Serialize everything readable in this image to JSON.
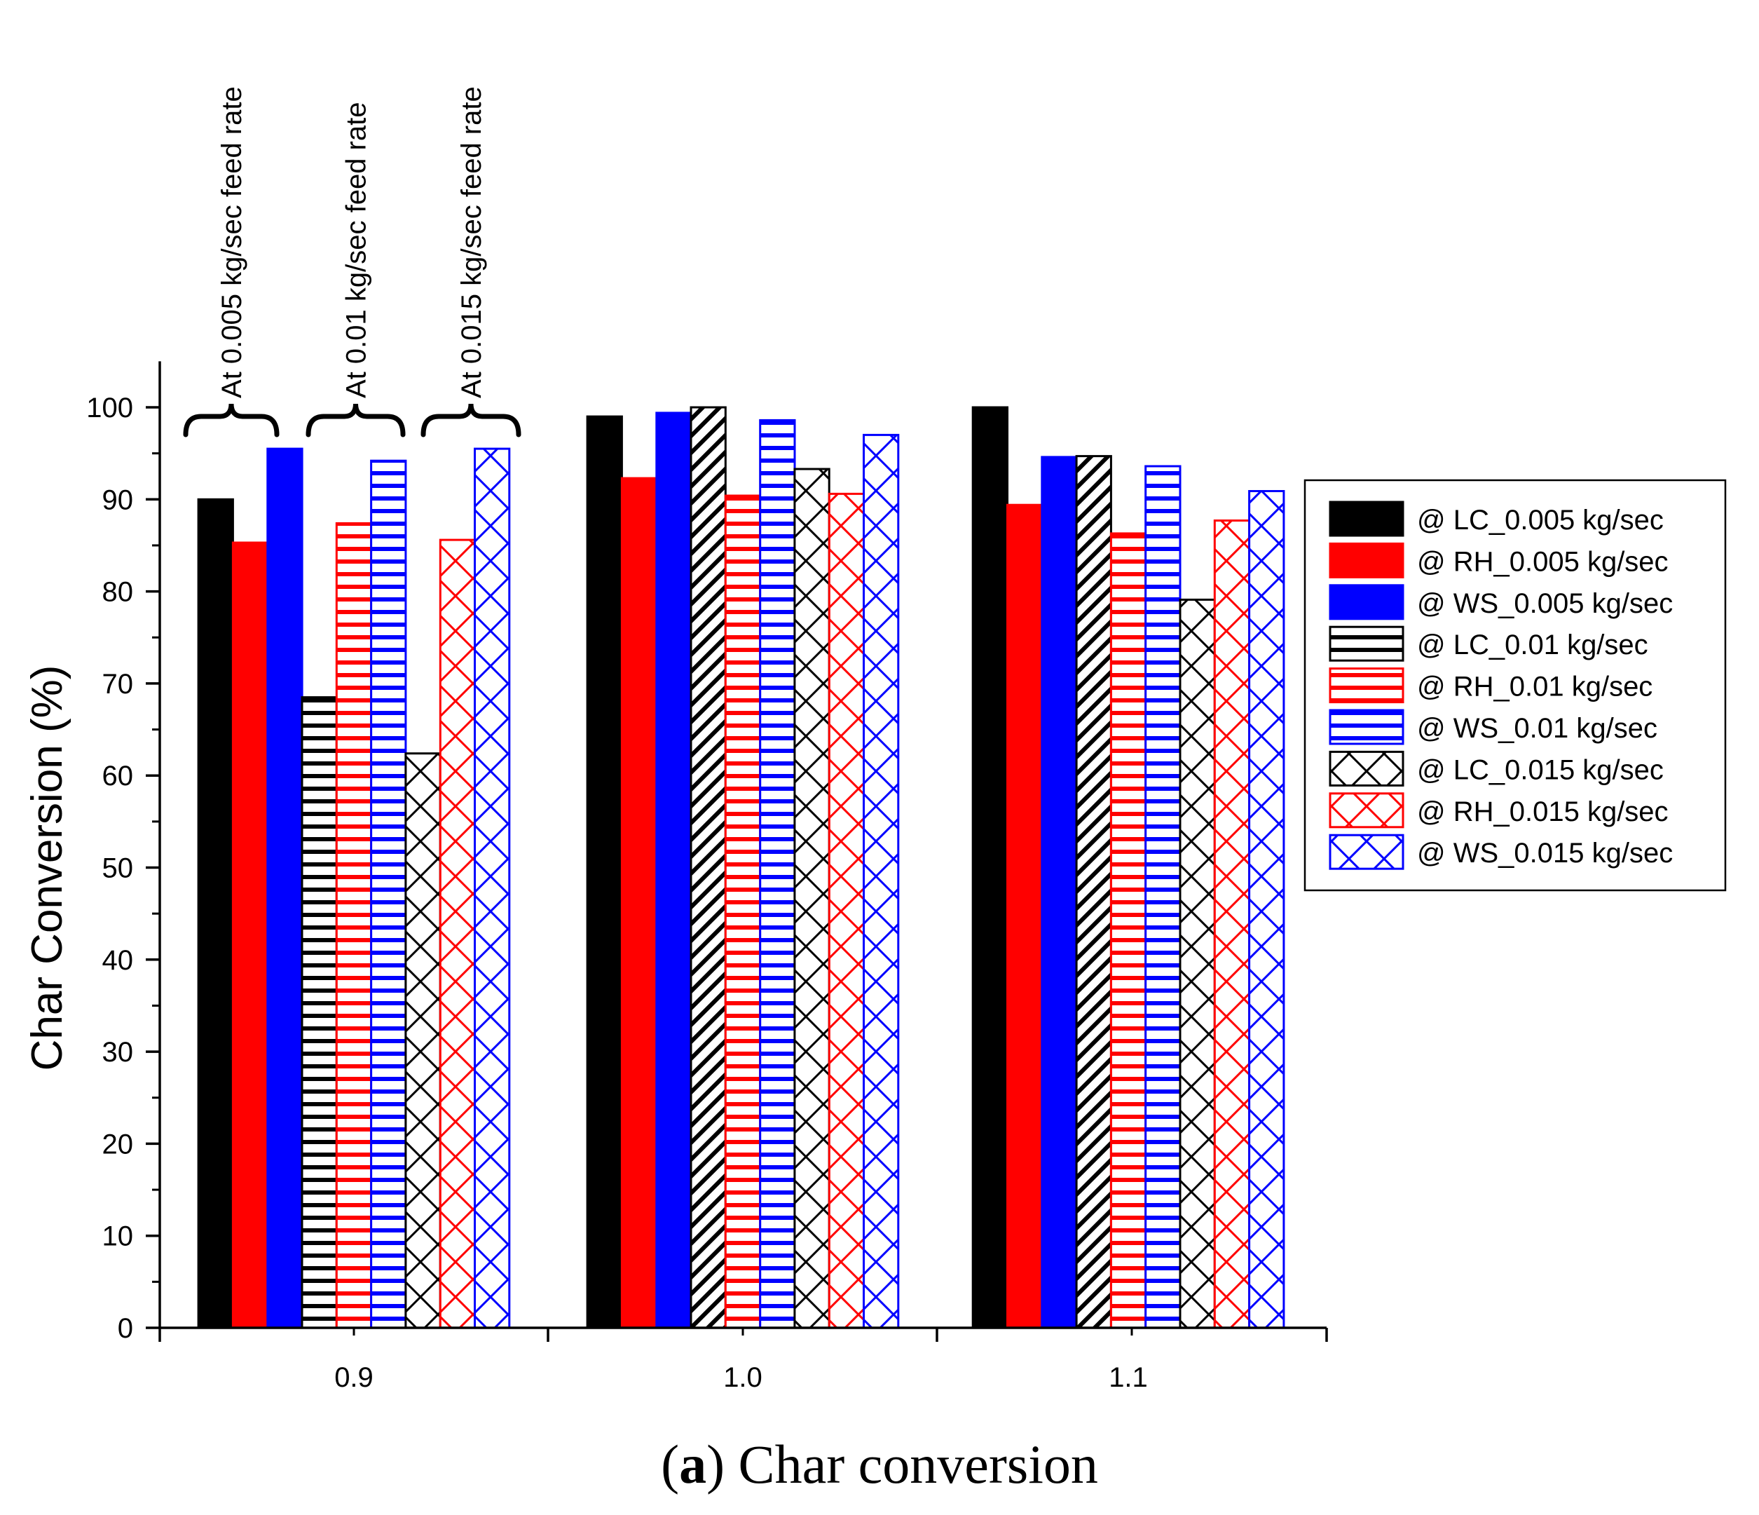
{
  "chart_data": {
    "type": "bar",
    "ylabel": "Char Conversion (%)",
    "xlabel": "",
    "ylim": [
      0,
      105
    ],
    "yticks": [
      0,
      10,
      20,
      30,
      40,
      50,
      60,
      70,
      80,
      90,
      100
    ],
    "categories": [
      "0.9",
      "1.0",
      "1.1"
    ],
    "grid": false,
    "legend_position": "right",
    "series": [
      {
        "name": "@ LC_0.005 kg/sec",
        "color": "#000000",
        "pattern": "solid",
        "values": [
          90.0,
          99.0,
          100.0
        ]
      },
      {
        "name": "@ RH_0.005 kg/sec",
        "color": "#ff0000",
        "pattern": "solid",
        "values": [
          85.3,
          92.3,
          89.4
        ]
      },
      {
        "name": "@ WS_0.005 kg/sec",
        "color": "#0000ff",
        "pattern": "solid",
        "values": [
          95.5,
          99.4,
          94.6
        ]
      },
      {
        "name": "@ LC_0.01 kg/sec",
        "color": "#000000",
        "pattern": "horizontal",
        "values": [
          68.5,
          100.0,
          94.7
        ]
      },
      {
        "name": "@ RH_0.01 kg/sec",
        "color": "#ff0000",
        "pattern": "horizontal",
        "values": [
          87.4,
          90.4,
          86.3
        ]
      },
      {
        "name": "@ WS_0.01 kg/sec",
        "color": "#0000ff",
        "pattern": "horizontal",
        "values": [
          94.2,
          98.6,
          93.6
        ]
      },
      {
        "name": "@ LC_0.015 kg/sec",
        "color": "#000000",
        "pattern": "crosshatch",
        "values": [
          62.4,
          93.3,
          79.1
        ]
      },
      {
        "name": "@ RH_0.015 kg/sec",
        "color": "#ff0000",
        "pattern": "crosshatch",
        "values": [
          85.6,
          90.6,
          87.7
        ]
      },
      {
        "name": "@ WS_0.015 kg/sec",
        "color": "#0000ff",
        "pattern": "crosshatch",
        "values": [
          95.5,
          97.0,
          90.9
        ]
      }
    ],
    "annotations": [
      "At 0.005 kg/sec feed rate",
      "At 0.01 kg/sec feed rate",
      "At 0.015 kg/sec feed rate"
    ]
  },
  "caption": {
    "label": "a",
    "text": " Char conversion"
  }
}
